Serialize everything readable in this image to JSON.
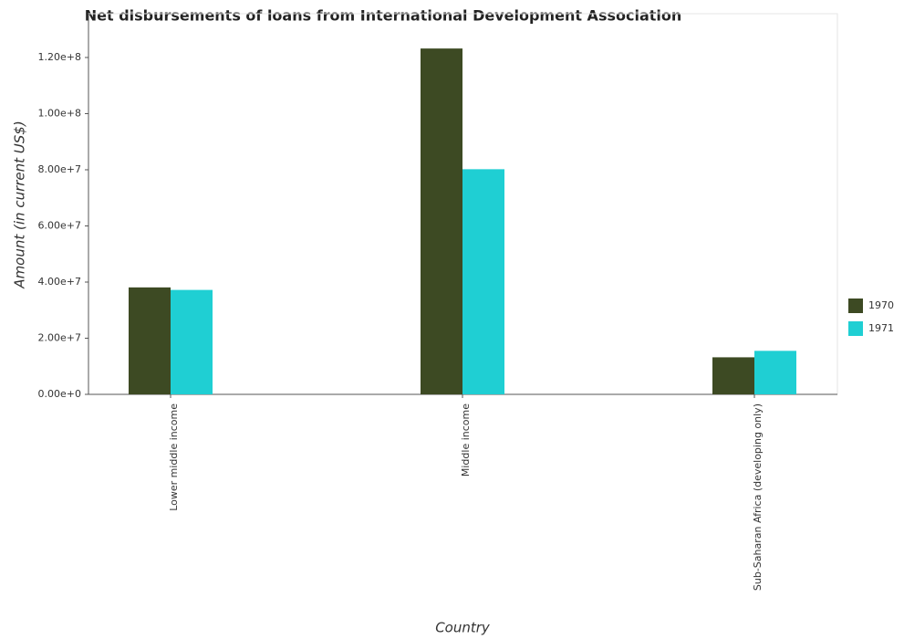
{
  "chart_data": {
    "type": "bar",
    "title": "Net disbursements of loans from International Development Association",
    "x_label": "Country",
    "y_label": "Amount (in current US$)",
    "categories": [
      "Lower middle income",
      "Middle income",
      "Sub-Saharan Africa (developing only)"
    ],
    "series": [
      {
        "name": "1970",
        "color": "#3d4a23",
        "values": [
          38100000,
          123200000,
          13200000
        ]
      },
      {
        "name": "1971",
        "color": "#1fcfd3",
        "values": [
          37200000,
          80200000,
          15500000
        ]
      }
    ],
    "ylim": [
      0,
      135600000
    ],
    "yticks": [
      {
        "value": 0,
        "label": "0.00e+0"
      },
      {
        "value": 20000000,
        "label": "2.00e+7"
      },
      {
        "value": 40000000,
        "label": "4.00e+7"
      },
      {
        "value": 60000000,
        "label": "6.00e+7"
      },
      {
        "value": 80000000,
        "label": "8.00e+7"
      },
      {
        "value": 100000000,
        "label": "1.00e+8"
      },
      {
        "value": 120000000,
        "label": "1.20e+8"
      }
    ],
    "grid": false,
    "legend_position": "right"
  }
}
